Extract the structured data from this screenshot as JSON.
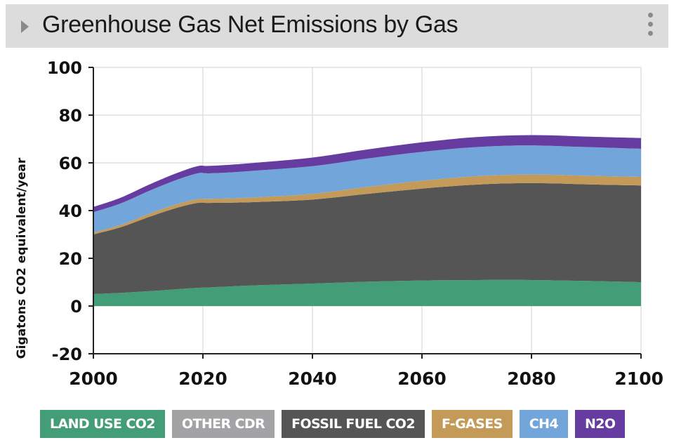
{
  "header": {
    "title": "Greenhouse Gas Net Emissions by Gas"
  },
  "chart_data": {
    "type": "area",
    "stacked": true,
    "title": "Greenhouse Gas Net Emissions by Gas",
    "xlabel": "",
    "ylabel": "Gigatons CO2 equivalent/year",
    "xlim": [
      2000,
      2100
    ],
    "ylim": [
      -20,
      100
    ],
    "x_ticks": [
      2000,
      2020,
      2040,
      2060,
      2080,
      2100
    ],
    "y_ticks": [
      -20,
      0,
      20,
      40,
      60,
      80,
      100
    ],
    "grid": true,
    "x": [
      2000,
      2005,
      2010,
      2015,
      2019,
      2021,
      2025,
      2030,
      2040,
      2050,
      2060,
      2070,
      2080,
      2090,
      2100
    ],
    "series": [
      {
        "name": "LAND USE CO2",
        "color": "#439e78",
        "values": [
          5,
          5.5,
          6.2,
          7.0,
          7.6,
          7.8,
          8.2,
          8.7,
          9.4,
          10.2,
          10.7,
          10.9,
          10.9,
          10.5,
          10.0
        ]
      },
      {
        "name": "OTHER CDR",
        "color": "#a3a3a6",
        "values": [
          0,
          0,
          0,
          0,
          0,
          0,
          0,
          0,
          0,
          0,
          0,
          0,
          0,
          0,
          0
        ]
      },
      {
        "name": "FOSSIL FUEL CO2",
        "color": "#555555",
        "values": [
          25,
          27.5,
          31.0,
          34.0,
          35.6,
          35.4,
          35.1,
          34.9,
          35.2,
          36.8,
          38.5,
          40.0,
          40.6,
          40.5,
          40.5
        ]
      },
      {
        "name": "F-GASES",
        "color": "#c49a58",
        "values": [
          0.8,
          1.0,
          1.3,
          1.5,
          1.6,
          1.7,
          1.8,
          2.0,
          2.4,
          2.9,
          3.3,
          3.5,
          3.6,
          3.6,
          3.6
        ]
      },
      {
        "name": "CH4",
        "color": "#72a6da",
        "values": [
          8.5,
          9.0,
          9.6,
          10.2,
          10.8,
          10.7,
          10.9,
          11.2,
          11.6,
          11.9,
          12.1,
          12.2,
          12.2,
          12.0,
          11.8
        ]
      },
      {
        "name": "N2O",
        "color": "#663ca0",
        "values": [
          2.2,
          2.4,
          2.6,
          2.8,
          3.0,
          3.1,
          3.2,
          3.3,
          3.6,
          3.8,
          4.0,
          4.2,
          4.3,
          4.4,
          4.5
        ]
      }
    ]
  },
  "legend": [
    {
      "label": "LAND USE CO2",
      "color": "#439e78"
    },
    {
      "label": "OTHER CDR",
      "color": "#a3a3a6"
    },
    {
      "label": "FOSSIL FUEL CO2",
      "color": "#555555"
    },
    {
      "label": "F-GASES",
      "color": "#c49a58"
    },
    {
      "label": "CH4",
      "color": "#72a6da"
    },
    {
      "label": "N2O",
      "color": "#663ca0"
    }
  ]
}
